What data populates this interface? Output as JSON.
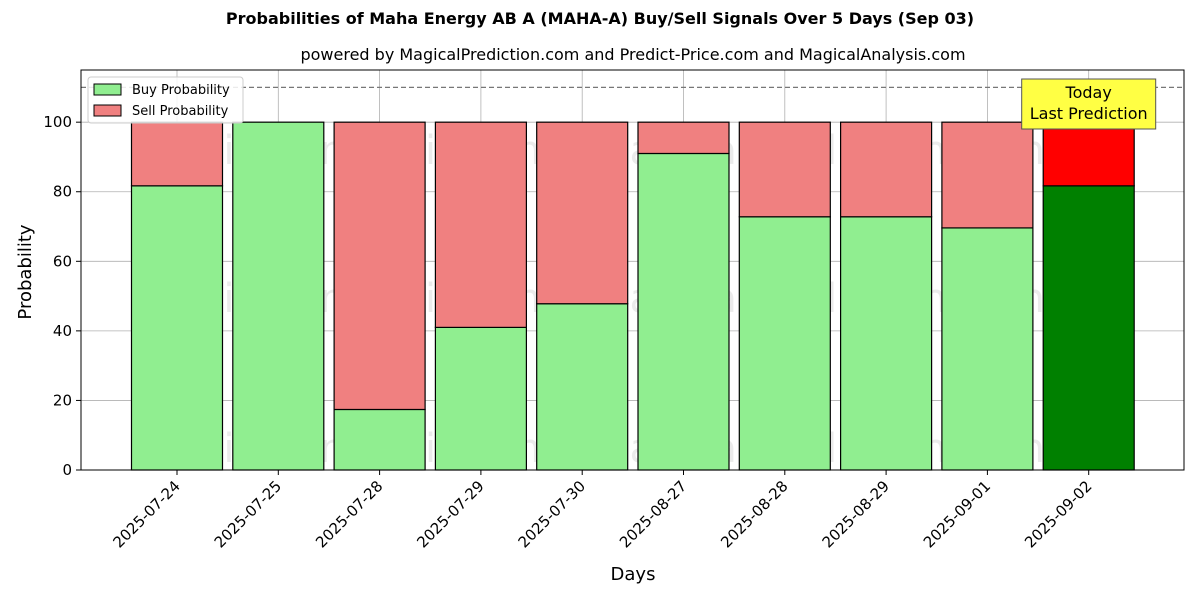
{
  "chart_data": {
    "type": "bar",
    "stacked": true,
    "title": "Probabilities of Maha Energy AB A (MAHA-A) Buy/Sell Signals Over 5 Days (Sep 03)",
    "subtitle": "powered by MagicalPrediction.com and Predict-Price.com and MagicalAnalysis.com",
    "xlabel": "Days",
    "ylabel": "Probability",
    "ylim": [
      0,
      115
    ],
    "yticks": [
      0,
      20,
      40,
      60,
      80,
      100
    ],
    "grid": true,
    "legend_position": "top-left",
    "reference_line": 110,
    "categories": [
      "2025-07-24",
      "2025-07-25",
      "2025-07-28",
      "2025-07-29",
      "2025-07-30",
      "2025-08-27",
      "2025-08-28",
      "2025-08-29",
      "2025-09-01",
      "2025-09-02"
    ],
    "series": [
      {
        "name": "Buy Probability",
        "color": "#90ee90",
        "highlight_color": "#008000",
        "values": [
          81.7,
          100,
          17.4,
          41.0,
          47.8,
          91.0,
          72.8,
          72.8,
          69.6,
          81.7
        ]
      },
      {
        "name": "Sell Probability",
        "color": "#f08080",
        "highlight_color": "#ff0000",
        "values": [
          18.3,
          0,
          82.6,
          59.0,
          52.2,
          9.0,
          27.2,
          27.2,
          30.4,
          18.3
        ]
      }
    ],
    "annotation": {
      "lines": [
        "Today",
        "Last Prediction"
      ],
      "background": "#ffff44"
    },
    "watermarks": [
      "MagicalAnalysis.com",
      "MagicalPrediction.com"
    ]
  }
}
